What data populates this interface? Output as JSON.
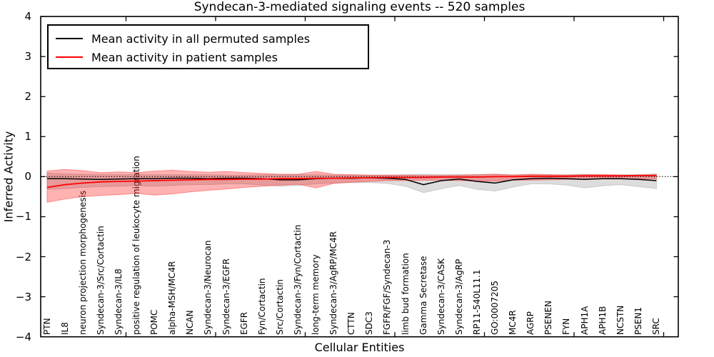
{
  "title": "Syndecan-3-mediated signaling events -- 520 samples",
  "axes": {
    "xlabel": "Cellular Entities",
    "ylabel": "Inferred Activity"
  },
  "legend": {
    "items": [
      {
        "label": "Mean activity in all permuted samples",
        "color": "#000000"
      },
      {
        "label": "Mean activity in patient samples",
        "color": "#ff0000"
      }
    ]
  },
  "chart_data": {
    "type": "line",
    "title": "Syndecan-3-mediated signaling events -- 520 samples",
    "xlabel": "Cellular Entities",
    "ylabel": "Inferred Activity",
    "ylim": [
      -4,
      4
    ],
    "yticks": [
      4,
      3,
      2,
      1,
      0,
      -1,
      -2,
      -3,
      -4
    ],
    "grid": false,
    "legend_position": "upper left",
    "zero_line_style": "dotted",
    "x_tick_label_rotation": 90,
    "categories": [
      "PTN",
      "IL8",
      "neuron projection morphogenesis",
      "Syndecan-3/Src/Cortactin",
      "Syndecan-3/IL8",
      "positive regulation of leukocyte migration",
      "POMC",
      "alpha-MSH/MC4R",
      "NCAN",
      "Syndecan-3/Neurocan",
      "Syndecan-3/EGFR",
      "EGFR",
      "Fyn/Cortactin",
      "Src/Cortactin",
      "Syndecan-3/Fyn/Cortactin",
      "long-term memory",
      "Syndecan-3/AgRP/MC4R",
      "CTTN",
      "SDC3",
      "FGFR/FGF/Syndecan-3",
      "limb bud formation",
      "Gamma Secretase",
      "Syndecan-3/CASK",
      "Syndecan-3/AgRP",
      "RP11-540L11.1",
      "GO:0007205",
      "MC4R",
      "AGRP",
      "PSENEN",
      "FYN",
      "APH1A",
      "APH1B",
      "NCSTN",
      "PSEN1",
      "SRC"
    ],
    "series": [
      {
        "name": "Mean activity in all permuted samples",
        "color": "#000000",
        "band_color": "#bbbbbb",
        "values": [
          -0.05,
          -0.05,
          -0.06,
          -0.07,
          -0.06,
          -0.05,
          -0.05,
          -0.04,
          -0.04,
          -0.05,
          -0.04,
          -0.04,
          -0.05,
          -0.08,
          -0.08,
          -0.05,
          -0.04,
          -0.04,
          -0.03,
          -0.04,
          -0.07,
          -0.2,
          -0.1,
          -0.06,
          -0.12,
          -0.16,
          -0.08,
          -0.05,
          -0.04,
          -0.05,
          -0.07,
          -0.05,
          -0.05,
          -0.07,
          -0.1
        ],
        "band_upper": [
          0.09,
          0.07,
          0.06,
          0.05,
          0.05,
          0.05,
          0.05,
          0.05,
          0.05,
          0.05,
          0.04,
          0.04,
          0.05,
          0.05,
          0.05,
          0.05,
          0.04,
          0.04,
          0.04,
          0.04,
          0.05,
          0.06,
          0.05,
          0.05,
          0.05,
          0.06,
          0.05,
          0.05,
          0.05,
          0.05,
          0.06,
          0.05,
          0.05,
          0.05,
          0.07
        ],
        "band_lower": [
          -0.32,
          -0.3,
          -0.27,
          -0.25,
          -0.24,
          -0.22,
          -0.24,
          -0.22,
          -0.2,
          -0.2,
          -0.18,
          -0.18,
          -0.21,
          -0.24,
          -0.22,
          -0.18,
          -0.16,
          -0.15,
          -0.15,
          -0.17,
          -0.24,
          -0.4,
          -0.3,
          -0.22,
          -0.32,
          -0.36,
          -0.26,
          -0.18,
          -0.18,
          -0.21,
          -0.28,
          -0.23,
          -0.2,
          -0.25,
          -0.3
        ]
      },
      {
        "name": "Mean activity in patient samples",
        "color": "#ff0000",
        "band_color": "#ff9999",
        "values": [
          -0.27,
          -0.2,
          -0.16,
          -0.13,
          -0.12,
          -0.11,
          -0.1,
          -0.09,
          -0.08,
          -0.07,
          -0.07,
          -0.06,
          -0.06,
          -0.05,
          -0.05,
          -0.04,
          -0.04,
          -0.03,
          -0.03,
          -0.02,
          -0.02,
          -0.02,
          -0.01,
          -0.01,
          -0.01,
          0.0,
          0.0,
          0.01,
          0.01,
          0.01,
          0.02,
          0.02,
          0.02,
          0.03,
          0.03
        ],
        "band_upper": [
          0.14,
          0.18,
          0.15,
          0.1,
          0.12,
          0.1,
          0.14,
          0.16,
          0.13,
          0.11,
          0.13,
          0.1,
          0.08,
          0.06,
          0.06,
          0.13,
          0.06,
          0.05,
          0.04,
          0.04,
          0.04,
          0.03,
          0.03,
          0.04,
          0.05,
          0.06,
          0.04,
          0.06,
          0.05,
          0.04,
          0.05,
          0.05,
          0.04,
          0.03,
          0.05
        ],
        "band_lower": [
          -0.64,
          -0.56,
          -0.5,
          -0.47,
          -0.45,
          -0.42,
          -0.46,
          -0.43,
          -0.38,
          -0.34,
          -0.31,
          -0.27,
          -0.24,
          -0.21,
          -0.19,
          -0.28,
          -0.17,
          -0.14,
          -0.12,
          -0.1,
          -0.1,
          -0.09,
          -0.09,
          -0.1,
          -0.11,
          -0.11,
          -0.09,
          -0.09,
          -0.08,
          -0.07,
          -0.07,
          -0.06,
          -0.06,
          -0.05,
          -0.06
        ]
      }
    ]
  }
}
